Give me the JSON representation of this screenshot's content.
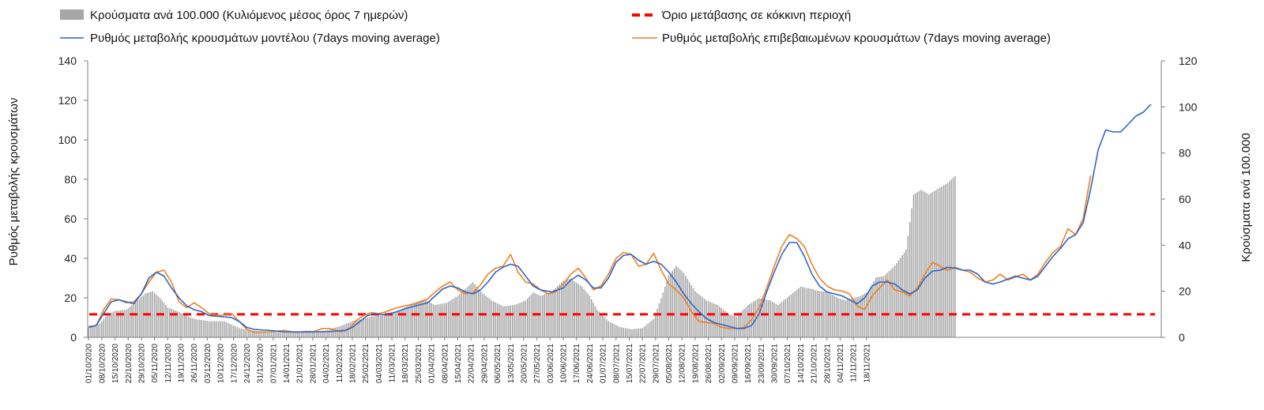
{
  "chart_data": {
    "type": "bar+line",
    "title": "",
    "y_left": {
      "label": "Ρυθμός μεταβολής κρουσμάτων",
      "min": 0,
      "max": 140,
      "step": 20,
      "ticks": [
        "0",
        "20",
        "40",
        "60",
        "80",
        "100",
        "120",
        "140"
      ]
    },
    "y_right": {
      "label": "Κρούσματα ανά 100.000",
      "min": 0,
      "max": 120,
      "step": 20,
      "ticks": [
        "0",
        "20",
        "40",
        "60",
        "80",
        "100",
        "120"
      ]
    },
    "grid": false,
    "legend_position": "top",
    "legend": {
      "bars": "Κρούσματα ανά 100.000 (Κυλιόμενος μέσος όρος 7 ημερών)",
      "threshold": "Όριο μετάβασης σε κόκκινη περιοχή",
      "model": "Ρυθμός μεταβολής κρουσμάτων μοντέλου (7days moving average)",
      "confirmed": "Ρυθμός μεταβολής επιβεβαιωμένων κρουσμάτων (7days moving average)"
    },
    "colors": {
      "bars": "#a6a6a6",
      "threshold": "#ff0000",
      "model": "#2e63c9",
      "confirmed": "#f07f1b",
      "axis": "#7f7f7f"
    },
    "x_start_date": "01/10/2020",
    "x_days": 425,
    "x_tick_labels": [
      "01/10/2020",
      "08/10/2020",
      "15/10/2020",
      "22/10/2020",
      "29/10/2020",
      "05/11/2020",
      "12/11/2020",
      "19/11/2020",
      "26/11/2020",
      "03/12/2020",
      "10/12/2020",
      "17/12/2020",
      "24/12/2020",
      "31/12/2020",
      "07/01/2021",
      "14/01/2021",
      "21/01/2021",
      "28/01/2021",
      "04/02/2021",
      "11/02/2021",
      "18/02/2021",
      "25/02/2021",
      "04/03/2021",
      "11/03/2021",
      "18/03/2021",
      "25/03/2021",
      "01/04/2021",
      "08/04/2021",
      "15/04/2021",
      "22/04/2021",
      "29/04/2021",
      "06/05/2021",
      "13/05/2021",
      "20/05/2021",
      "27/05/2021",
      "03/06/2021",
      "10/06/2021",
      "17/06/2021",
      "24/06/2021",
      "01/07/2021",
      "08/07/2021",
      "15/07/2021",
      "22/07/2021",
      "29/07/2021",
      "05/08/2021",
      "12/08/2021",
      "19/08/2021",
      "26/08/2021",
      "02/09/2021",
      "09/09/2021",
      "16/09/2021",
      "23/09/2021",
      "30/09/2021",
      "07/10/2021",
      "14/10/2021",
      "21/10/2021",
      "28/10/2021",
      "04/11/2021",
      "11/11/2021",
      "18/11/2021"
    ],
    "threshold_right_axis": 10,
    "bar_keypoints_day_value_right_axis": [
      [
        0,
        4
      ],
      [
        6,
        6
      ],
      [
        10,
        10
      ],
      [
        14,
        11.5
      ],
      [
        20,
        12
      ],
      [
        26,
        16
      ],
      [
        30,
        19
      ],
      [
        34,
        20
      ],
      [
        38,
        17
      ],
      [
        42,
        13
      ],
      [
        48,
        11
      ],
      [
        56,
        8
      ],
      [
        64,
        7
      ],
      [
        72,
        7
      ],
      [
        80,
        4
      ],
      [
        86,
        3
      ],
      [
        96,
        2.5
      ],
      [
        110,
        2.5
      ],
      [
        120,
        2.5
      ],
      [
        126,
        3
      ],
      [
        134,
        5
      ],
      [
        140,
        7
      ],
      [
        146,
        8
      ],
      [
        150,
        9
      ],
      [
        160,
        10
      ],
      [
        166,
        12
      ],
      [
        172,
        15
      ],
      [
        178,
        16.5
      ],
      [
        184,
        14
      ],
      [
        190,
        15
      ],
      [
        196,
        18
      ],
      [
        200,
        21
      ],
      [
        204,
        24
      ],
      [
        208,
        20
      ],
      [
        214,
        16
      ],
      [
        220,
        13.5
      ],
      [
        226,
        14
      ],
      [
        232,
        16
      ],
      [
        236,
        19.5
      ],
      [
        240,
        18
      ],
      [
        246,
        20
      ],
      [
        252,
        24.5
      ],
      [
        256,
        25.5
      ],
      [
        262,
        22
      ],
      [
        266,
        18
      ],
      [
        270,
        12
      ],
      [
        276,
        7
      ],
      [
        282,
        4.5
      ],
      [
        288,
        3.5
      ],
      [
        294,
        4
      ],
      [
        300,
        8
      ],
      [
        304,
        17
      ],
      [
        308,
        27
      ],
      [
        312,
        31
      ],
      [
        316,
        28
      ],
      [
        322,
        20
      ],
      [
        328,
        16
      ],
      [
        334,
        14
      ],
      [
        340,
        10
      ],
      [
        344,
        9
      ],
      [
        350,
        14
      ],
      [
        356,
        17
      ],
      [
        362,
        16
      ],
      [
        366,
        14
      ],
      [
        372,
        18
      ],
      [
        378,
        22
      ],
      [
        384,
        21
      ],
      [
        388,
        20
      ],
      [
        392,
        20
      ],
      [
        398,
        17
      ],
      [
        402,
        16
      ],
      [
        410,
        18
      ],
      [
        414,
        20
      ],
      [
        418,
        26
      ],
      [
        422,
        26.5
      ],
      [
        428,
        31
      ],
      [
        434,
        38
      ],
      [
        438,
        62
      ],
      [
        442,
        64
      ],
      [
        446,
        62
      ],
      [
        450,
        64
      ],
      [
        456,
        67
      ],
      [
        460,
        70
      ]
    ],
    "model_keypoints_day_value_left_axis": [
      [
        0,
        5
      ],
      [
        4,
        6
      ],
      [
        8,
        12
      ],
      [
        12,
        18
      ],
      [
        16,
        19
      ],
      [
        20,
        18
      ],
      [
        24,
        17
      ],
      [
        28,
        22
      ],
      [
        32,
        30
      ],
      [
        36,
        33
      ],
      [
        40,
        31
      ],
      [
        44,
        25
      ],
      [
        48,
        20
      ],
      [
        52,
        16
      ],
      [
        56,
        14
      ],
      [
        60,
        13
      ],
      [
        64,
        11
      ],
      [
        70,
        10.5
      ],
      [
        76,
        10
      ],
      [
        80,
        8
      ],
      [
        84,
        5
      ],
      [
        88,
        4
      ],
      [
        96,
        3.5
      ],
      [
        104,
        2.8
      ],
      [
        116,
        2.7
      ],
      [
        128,
        2.9
      ],
      [
        136,
        3.5
      ],
      [
        140,
        5
      ],
      [
        144,
        8
      ],
      [
        148,
        11
      ],
      [
        152,
        12
      ],
      [
        156,
        11.5
      ],
      [
        162,
        12.5
      ],
      [
        168,
        14.5
      ],
      [
        174,
        16
      ],
      [
        180,
        17.5
      ],
      [
        184,
        21
      ],
      [
        188,
        24.5
      ],
      [
        192,
        26
      ],
      [
        196,
        25
      ],
      [
        200,
        23
      ],
      [
        204,
        22
      ],
      [
        208,
        24
      ],
      [
        212,
        28
      ],
      [
        216,
        33
      ],
      [
        220,
        35.5
      ],
      [
        224,
        37
      ],
      [
        228,
        36
      ],
      [
        232,
        31
      ],
      [
        236,
        26
      ],
      [
        240,
        24
      ],
      [
        246,
        23
      ],
      [
        252,
        25
      ],
      [
        256,
        29
      ],
      [
        260,
        31.5
      ],
      [
        264,
        29
      ],
      [
        268,
        25
      ],
      [
        272,
        25
      ],
      [
        276,
        30
      ],
      [
        280,
        38
      ],
      [
        284,
        41.5
      ],
      [
        288,
        42
      ],
      [
        292,
        39
      ],
      [
        296,
        37
      ],
      [
        300,
        38.5
      ],
      [
        304,
        37
      ],
      [
        308,
        33
      ],
      [
        312,
        28
      ],
      [
        316,
        22
      ],
      [
        320,
        17
      ],
      [
        324,
        13
      ],
      [
        328,
        9.5
      ],
      [
        332,
        7.5
      ],
      [
        336,
        6.5
      ],
      [
        340,
        5.5
      ],
      [
        344,
        4.5
      ],
      [
        348,
        4.5
      ],
      [
        352,
        6
      ],
      [
        356,
        12
      ],
      [
        360,
        23
      ],
      [
        364,
        33
      ],
      [
        368,
        42
      ],
      [
        372,
        48
      ],
      [
        376,
        48
      ],
      [
        380,
        41
      ],
      [
        384,
        32
      ],
      [
        388,
        26
      ],
      [
        392,
        23
      ],
      [
        396,
        22
      ],
      [
        400,
        21
      ],
      [
        404,
        19
      ],
      [
        408,
        17
      ],
      [
        412,
        20
      ],
      [
        416,
        26
      ],
      [
        420,
        28
      ],
      [
        424,
        28
      ],
      [
        428,
        27
      ],
      [
        432,
        24
      ],
      [
        436,
        22
      ],
      [
        440,
        24
      ],
      [
        444,
        30
      ],
      [
        448,
        33.5
      ],
      [
        452,
        34
      ],
      [
        456,
        35.5
      ],
      [
        460,
        35
      ],
      [
        464,
        34
      ],
      [
        468,
        34
      ],
      [
        472,
        32
      ],
      [
        476,
        28
      ],
      [
        480,
        27
      ],
      [
        484,
        28
      ],
      [
        488,
        29.5
      ],
      [
        492,
        31
      ],
      [
        496,
        30
      ],
      [
        500,
        29
      ],
      [
        504,
        31
      ],
      [
        508,
        36
      ],
      [
        512,
        41
      ],
      [
        516,
        45
      ],
      [
        520,
        50
      ],
      [
        524,
        52
      ],
      [
        528,
        58
      ],
      [
        532,
        75
      ],
      [
        536,
        95
      ],
      [
        540,
        105
      ],
      [
        544,
        104
      ],
      [
        548,
        104
      ],
      [
        552,
        108
      ],
      [
        556,
        112
      ],
      [
        560,
        114
      ],
      [
        564,
        118
      ]
    ],
    "confirmed_keypoints_day_value_left_axis": [
      [
        0,
        5.5
      ],
      [
        4,
        6
      ],
      [
        8,
        14
      ],
      [
        12,
        19.5
      ],
      [
        16,
        19
      ],
      [
        20,
        17.5
      ],
      [
        24,
        18
      ],
      [
        28,
        22
      ],
      [
        32,
        28
      ],
      [
        36,
        33
      ],
      [
        40,
        34
      ],
      [
        44,
        28
      ],
      [
        48,
        18
      ],
      [
        52,
        15
      ],
      [
        56,
        17.5
      ],
      [
        60,
        15
      ],
      [
        64,
        12
      ],
      [
        70,
        11
      ],
      [
        76,
        12
      ],
      [
        80,
        8
      ],
      [
        84,
        4
      ],
      [
        88,
        2.5
      ],
      [
        96,
        2.8
      ],
      [
        104,
        3.5
      ],
      [
        110,
        2.5
      ],
      [
        116,
        3
      ],
      [
        120,
        3
      ],
      [
        124,
        4.5
      ],
      [
        128,
        4.5
      ],
      [
        134,
        2.8
      ],
      [
        138,
        4
      ],
      [
        142,
        8.5
      ],
      [
        146,
        11
      ],
      [
        150,
        12.5
      ],
      [
        154,
        12
      ],
      [
        158,
        13
      ],
      [
        162,
        14.5
      ],
      [
        168,
        16
      ],
      [
        174,
        17
      ],
      [
        180,
        19.5
      ],
      [
        184,
        23
      ],
      [
        188,
        26
      ],
      [
        192,
        28
      ],
      [
        196,
        24
      ],
      [
        200,
        22
      ],
      [
        204,
        22.5
      ],
      [
        208,
        26.5
      ],
      [
        212,
        32
      ],
      [
        216,
        35
      ],
      [
        220,
        36
      ],
      [
        224,
        42
      ],
      [
        228,
        33
      ],
      [
        232,
        28
      ],
      [
        236,
        27
      ],
      [
        240,
        24
      ],
      [
        244,
        22
      ],
      [
        248,
        23
      ],
      [
        252,
        27
      ],
      [
        256,
        32
      ],
      [
        260,
        35
      ],
      [
        264,
        30
      ],
      [
        268,
        24
      ],
      [
        272,
        26
      ],
      [
        276,
        32
      ],
      [
        280,
        40
      ],
      [
        284,
        43
      ],
      [
        288,
        42
      ],
      [
        292,
        36
      ],
      [
        296,
        37
      ],
      [
        300,
        42.5
      ],
      [
        304,
        34
      ],
      [
        308,
        27
      ],
      [
        312,
        24
      ],
      [
        316,
        20
      ],
      [
        320,
        13
      ],
      [
        324,
        8
      ],
      [
        328,
        7.5
      ],
      [
        332,
        7
      ],
      [
        336,
        5
      ],
      [
        340,
        4.5
      ],
      [
        344,
        4.5
      ],
      [
        348,
        5
      ],
      [
        352,
        9
      ],
      [
        356,
        15
      ],
      [
        360,
        25
      ],
      [
        364,
        36
      ],
      [
        368,
        46
      ],
      [
        372,
        52
      ],
      [
        376,
        50
      ],
      [
        380,
        46
      ],
      [
        384,
        37
      ],
      [
        388,
        30
      ],
      [
        392,
        26
      ],
      [
        396,
        24
      ],
      [
        400,
        23.5
      ],
      [
        404,
        22
      ],
      [
        408,
        16
      ],
      [
        412,
        14
      ],
      [
        416,
        21
      ],
      [
        420,
        25
      ],
      [
        424,
        29
      ],
      [
        428,
        24
      ],
      [
        432,
        23
      ],
      [
        436,
        21
      ],
      [
        440,
        25
      ],
      [
        444,
        32
      ],
      [
        448,
        38
      ],
      [
        452,
        36
      ],
      [
        456,
        34
      ],
      [
        460,
        35.5
      ],
      [
        464,
        34
      ],
      [
        468,
        33
      ],
      [
        472,
        30
      ],
      [
        476,
        28
      ],
      [
        480,
        29
      ],
      [
        484,
        32
      ],
      [
        488,
        29
      ],
      [
        492,
        30.5
      ],
      [
        496,
        32
      ],
      [
        500,
        29
      ],
      [
        504,
        32
      ],
      [
        508,
        38
      ],
      [
        512,
        43
      ],
      [
        516,
        46
      ],
      [
        520,
        55
      ],
      [
        524,
        52
      ],
      [
        528,
        60
      ],
      [
        532,
        82
      ]
    ]
  }
}
